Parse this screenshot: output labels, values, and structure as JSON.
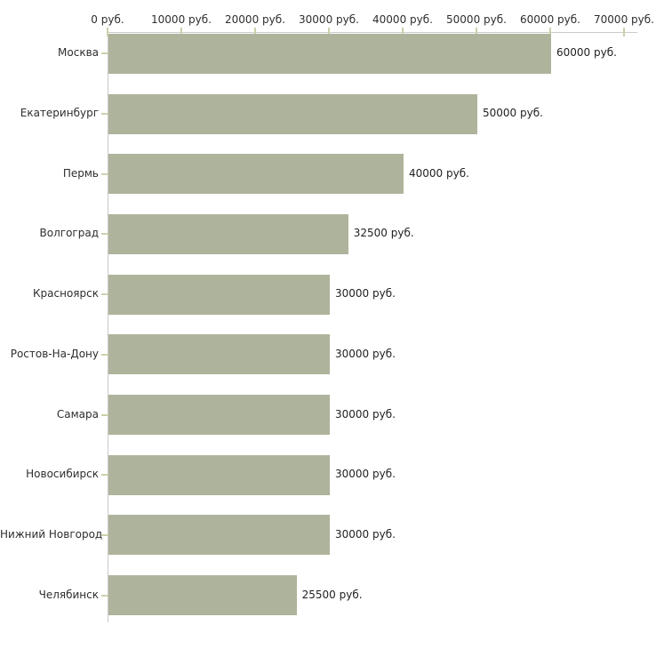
{
  "chart_data": {
    "type": "bar",
    "orientation": "horizontal",
    "title": "",
    "xlabel": "",
    "ylabel": "",
    "unit_suffix": " руб.",
    "categories": [
      "Москва",
      "Екатеринбург",
      "Пермь",
      "Волгоград",
      "Красноярск",
      "Ростов-На-Дону",
      "Самара",
      "Новосибирск",
      "Нижний Новгород",
      "Челябинск"
    ],
    "values": [
      60000,
      50000,
      40000,
      32500,
      30000,
      30000,
      30000,
      30000,
      30000,
      25500
    ],
    "value_labels": [
      "60000 руб.",
      "50000 руб.",
      "40000 руб.",
      "32500 руб.",
      "30000 руб.",
      "30000 руб.",
      "30000 руб.",
      "30000 руб.",
      "30000 руб.",
      "25500 руб."
    ],
    "xlim": [
      0,
      70000
    ],
    "x_tick_values": [
      0,
      10000,
      20000,
      30000,
      40000,
      50000,
      60000,
      70000
    ],
    "x_tick_labels": [
      "0 руб.",
      "10000 руб.",
      "20000 руб.",
      "30000 руб.",
      "40000 руб.",
      "50000 руб.",
      "60000 руб.",
      "70000 руб."
    ],
    "grid": false,
    "legend": "none",
    "colors": {
      "bar": "#aeb49b",
      "axis_line": "#c9c9c9",
      "tick_mark": "#ccd0aa",
      "text": "#2e2e2e",
      "background": "#ffffff"
    }
  }
}
